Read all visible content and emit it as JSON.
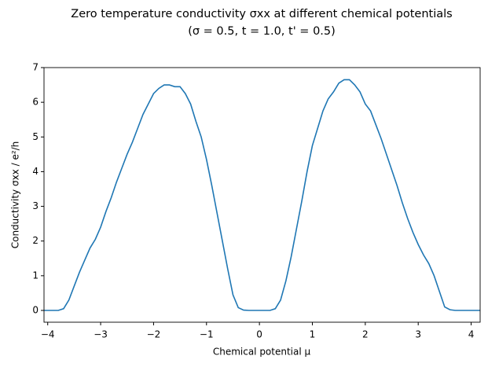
{
  "chart_data": {
    "type": "line",
    "title": "Zero temperature conductivity σxx at different chemical potentials",
    "subtitle": "(σ = 0.5, t = 1.0, t' = 0.5)",
    "x_label": "Chemical potential μ",
    "y_label": "Conductivity σxx / e²/h",
    "x": [
      -4.07,
      -3.8,
      -3.7,
      -3.6,
      -3.5,
      -3.4,
      -3.3,
      -3.2,
      -3.1,
      -3.0,
      -2.9,
      -2.8,
      -2.7,
      -2.6,
      -2.5,
      -2.4,
      -2.3,
      -2.2,
      -2.1,
      -2.0,
      -1.9,
      -1.8,
      -1.7,
      -1.6,
      -1.5,
      -1.4,
      -1.3,
      -1.2,
      -1.1,
      -1.0,
      -0.9,
      -0.8,
      -0.7,
      -0.6,
      -0.5,
      -0.4,
      -0.3,
      -0.2,
      0.2,
      0.3,
      0.4,
      0.5,
      0.6,
      0.7,
      0.8,
      0.9,
      1.0,
      1.1,
      1.2,
      1.3,
      1.4,
      1.5,
      1.6,
      1.7,
      1.8,
      1.9,
      2.0,
      2.1,
      2.2,
      2.3,
      2.4,
      2.5,
      2.6,
      2.7,
      2.8,
      2.9,
      3.0,
      3.1,
      3.2,
      3.3,
      3.4,
      3.5,
      3.6,
      3.7,
      4.17
    ],
    "series": [
      {
        "color": "#1f77b4",
        "values": [
          0,
          0,
          0.05,
          0.3,
          0.7,
          1.1,
          1.45,
          1.8,
          2.05,
          2.4,
          2.85,
          3.25,
          3.7,
          4.1,
          4.5,
          4.85,
          5.25,
          5.65,
          5.95,
          6.25,
          6.4,
          6.5,
          6.5,
          6.45,
          6.45,
          6.25,
          5.95,
          5.45,
          5.0,
          4.35,
          3.6,
          2.8,
          2.0,
          1.2,
          0.45,
          0.08,
          0.01,
          0,
          0,
          0.05,
          0.3,
          0.85,
          1.55,
          2.35,
          3.15,
          4.0,
          4.75,
          5.25,
          5.75,
          6.1,
          6.3,
          6.55,
          6.65,
          6.65,
          6.5,
          6.3,
          5.95,
          5.75,
          5.35,
          4.95,
          4.5,
          4.05,
          3.6,
          3.1,
          2.65,
          2.25,
          1.9,
          1.6,
          1.35,
          1.0,
          0.55,
          0.1,
          0.02,
          0,
          0
        ]
      }
    ],
    "xlim": [
      -4.07,
      4.17
    ],
    "ylim": [
      -0.34,
      7
    ],
    "xticks": [
      {
        "value": -4,
        "label": "−4"
      },
      {
        "value": -3,
        "label": "−3"
      },
      {
        "value": -2,
        "label": "−2"
      },
      {
        "value": -1,
        "label": "−1"
      },
      0,
      1,
      2,
      3,
      4
    ],
    "yticks": [
      0,
      1,
      2,
      3,
      4,
      5,
      6,
      7
    ]
  }
}
